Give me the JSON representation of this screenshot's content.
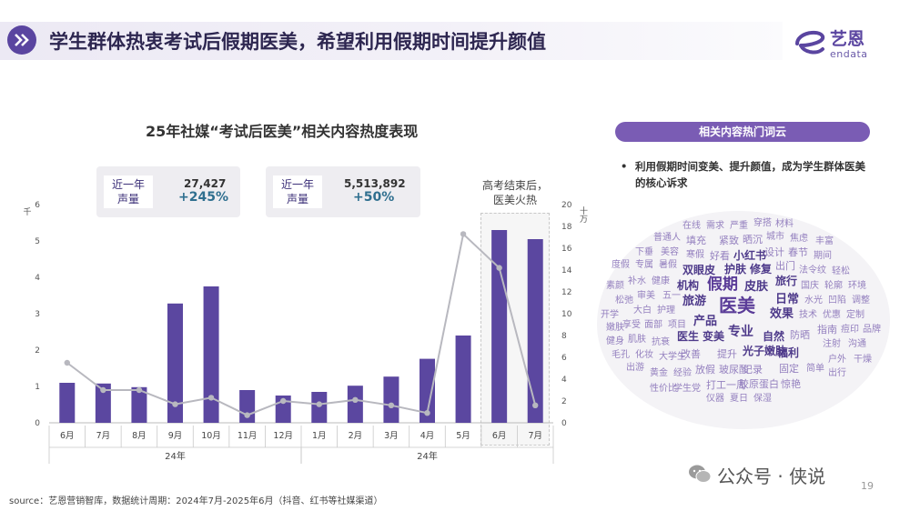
{
  "header": {
    "title": "学生群体热衷考试后假期医美，希望利用假期时间提升颜值",
    "brand_cn": "艺恩",
    "brand_en": "endata"
  },
  "kpis": [
    {
      "label_line1": "近一年",
      "label_line2": "声量",
      "value": "27,427",
      "change": "+245%"
    },
    {
      "label_line1": "近一年",
      "label_line2": "声量",
      "value": "5,513,892",
      "change": "+50%"
    }
  ],
  "peak_annotation": {
    "line1": "高考结束后，",
    "line2": "医美火热"
  },
  "chart_data": {
    "type": "bar",
    "title": "25年社媒“考试后医美”相关内容热度表现",
    "categories": [
      "6月",
      "7月",
      "8月",
      "9月",
      "10月",
      "11月",
      "12月",
      "1月",
      "2月",
      "3月",
      "4月",
      "5月",
      "6月",
      "7月"
    ],
    "year_groups": [
      {
        "label": "24年",
        "from": 0,
        "to": 6
      },
      {
        "label": "24年",
        "from": 7,
        "to": 13
      }
    ],
    "series": [
      {
        "values": [
          1.1,
          1.08,
          0.98,
          3.28,
          3.75,
          0.9,
          0.75,
          0.85,
          1.02,
          1.27,
          1.76,
          2.4,
          5.3,
          5.05
        ],
        "axis": "left",
        "kind": "bar"
      },
      {
        "values": [
          5.5,
          3.0,
          3.0,
          1.7,
          2.3,
          0.7,
          2.0,
          1.7,
          2.1,
          1.6,
          0.9,
          17.3,
          14.2,
          1.6
        ],
        "axis": "right",
        "kind": "line"
      }
    ],
    "left_axis": {
      "unit": "千",
      "ticks": [
        0,
        1,
        2,
        3,
        4,
        5,
        6
      ],
      "ylim": [
        0,
        6
      ]
    },
    "right_axis": {
      "unit": "十万",
      "ticks": [
        0,
        2,
        4,
        6,
        8,
        10,
        12,
        14,
        16,
        18,
        20
      ],
      "ylim": [
        0,
        20
      ]
    },
    "colors": {
      "bar": "#5b47a0",
      "line": "#b8b8bf",
      "axis": "#bbbbbb"
    }
  },
  "word_cloud": {
    "header": "相关内容热门词云",
    "bullet": "利用假期时间变美、提升颜值，成为学生群体医美的核心诉求",
    "words": [
      "在线",
      "需求",
      "严重",
      "穿搭",
      "材料",
      "普通人",
      "填充",
      "紧致",
      "晒沉",
      "城市",
      "焦虑",
      "丰富",
      "下垂",
      "美容",
      "寒假",
      "好看",
      "小红书",
      "设计",
      "春节",
      "期间",
      "度假",
      "专属",
      "暑假",
      "双眼皮",
      "护肤",
      "修复",
      "出门",
      "法令纹",
      "轻松",
      "素颜",
      "补水",
      "健康",
      "机构",
      "假期",
      "皮肤",
      "旅行",
      "国庆",
      "轮廓",
      "环境",
      "松弛",
      "审美",
      "五一",
      "旅游",
      "日常",
      "水光",
      "凹陷",
      "调整",
      "开学",
      "大白",
      "护理",
      "医美",
      "效果",
      "技术",
      "优惠",
      "定制",
      "嫩肤",
      "享受",
      "面部",
      "项目",
      "产品",
      "指南",
      "痘印",
      "品牌",
      "健身",
      "肌肤",
      "抗衰",
      "医生",
      "变美",
      "专业",
      "自然",
      "防晒",
      "注射",
      "沟通",
      "毛孔",
      "化妆",
      "大学生",
      "改善",
      "提升",
      "光子嫩肤",
      "福利",
      "户外",
      "干燥",
      "出游",
      "黄金",
      "经验",
      "放假",
      "玻尿酸",
      "记录",
      "固定",
      "简单",
      "出行",
      "性价比",
      "学生党",
      "打工一周",
      "胶原蛋白",
      "惊艳",
      "仪器",
      "夏日",
      "保湿"
    ]
  },
  "footer": {
    "source": "source：艺恩营销智库，数据统计周期：2024年7月-2025年6月（抖音、红书等社媒渠道）",
    "watermark": "公众号 · 侠说",
    "page": "19"
  }
}
